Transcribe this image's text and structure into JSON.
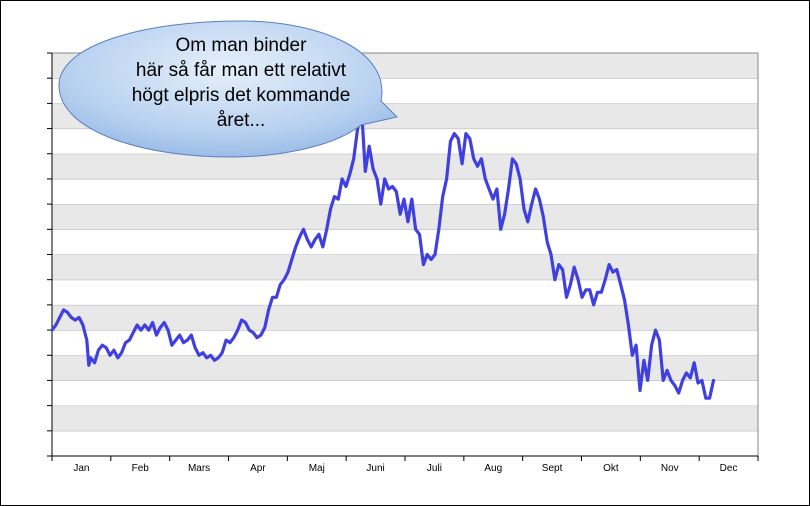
{
  "annotation": {
    "lines": [
      "Om man binder",
      "här så får man ett relativt",
      "högt elpris det kommande",
      "året..."
    ]
  },
  "chart_data": {
    "type": "line",
    "title": "",
    "xlabel": "",
    "ylabel": "",
    "x_tick_labels": [
      "Jan",
      "Feb",
      "Mars",
      "Apr",
      "Maj",
      "Juni",
      "Juli",
      "Aug",
      "Sept",
      "Okt",
      "Nov",
      "Dec"
    ],
    "y_tick_labels_shown": false,
    "grid": "alternating horizontal bands",
    "x_domain": [
      0,
      365
    ],
    "ylim": [
      0,
      16
    ],
    "series": [
      {
        "color": "#4040e0",
        "points": [
          [
            0,
            5.0
          ],
          [
            2,
            5.2
          ],
          [
            4,
            5.5
          ],
          [
            6,
            5.8
          ],
          [
            8,
            5.7
          ],
          [
            10,
            5.5
          ],
          [
            12,
            5.4
          ],
          [
            14,
            5.5
          ],
          [
            16,
            5.2
          ],
          [
            18,
            4.6
          ],
          [
            19,
            3.6
          ],
          [
            20,
            3.9
          ],
          [
            22,
            3.7
          ],
          [
            24,
            4.2
          ],
          [
            26,
            4.4
          ],
          [
            28,
            4.3
          ],
          [
            30,
            4.0
          ],
          [
            32,
            4.2
          ],
          [
            34,
            3.9
          ],
          [
            36,
            4.1
          ],
          [
            38,
            4.5
          ],
          [
            40,
            4.6
          ],
          [
            42,
            4.9
          ],
          [
            44,
            5.2
          ],
          [
            46,
            5.0
          ],
          [
            48,
            5.2
          ],
          [
            50,
            5.0
          ],
          [
            52,
            5.3
          ],
          [
            54,
            4.8
          ],
          [
            56,
            5.1
          ],
          [
            58,
            5.3
          ],
          [
            60,
            5.0
          ],
          [
            62,
            4.4
          ],
          [
            64,
            4.6
          ],
          [
            66,
            4.8
          ],
          [
            68,
            4.5
          ],
          [
            70,
            4.6
          ],
          [
            72,
            4.8
          ],
          [
            74,
            4.3
          ],
          [
            76,
            4.0
          ],
          [
            78,
            4.1
          ],
          [
            80,
            3.9
          ],
          [
            82,
            4.0
          ],
          [
            84,
            3.8
          ],
          [
            86,
            3.9
          ],
          [
            88,
            4.1
          ],
          [
            90,
            4.6
          ],
          [
            92,
            4.5
          ],
          [
            94,
            4.7
          ],
          [
            96,
            5.0
          ],
          [
            98,
            5.4
          ],
          [
            100,
            5.3
          ],
          [
            102,
            5.0
          ],
          [
            104,
            4.9
          ],
          [
            106,
            4.7
          ],
          [
            108,
            4.8
          ],
          [
            110,
            5.1
          ],
          [
            112,
            5.8
          ],
          [
            114,
            6.3
          ],
          [
            116,
            6.3
          ],
          [
            118,
            6.8
          ],
          [
            120,
            7.0
          ],
          [
            122,
            7.3
          ],
          [
            124,
            7.8
          ],
          [
            126,
            8.3
          ],
          [
            128,
            8.7
          ],
          [
            130,
            9.0
          ],
          [
            132,
            8.6
          ],
          [
            134,
            8.3
          ],
          [
            136,
            8.6
          ],
          [
            138,
            8.8
          ],
          [
            140,
            8.3
          ],
          [
            142,
            9.0
          ],
          [
            144,
            9.8
          ],
          [
            146,
            10.3
          ],
          [
            148,
            10.2
          ],
          [
            150,
            11.0
          ],
          [
            152,
            10.7
          ],
          [
            154,
            11.2
          ],
          [
            156,
            11.8
          ],
          [
            158,
            13.0
          ],
          [
            160,
            13.8
          ],
          [
            162,
            11.3
          ],
          [
            164,
            12.3
          ],
          [
            166,
            11.4
          ],
          [
            168,
            11.0
          ],
          [
            170,
            10.0
          ],
          [
            172,
            11.0
          ],
          [
            174,
            10.6
          ],
          [
            176,
            10.7
          ],
          [
            178,
            10.5
          ],
          [
            180,
            9.6
          ],
          [
            182,
            10.2
          ],
          [
            184,
            9.3
          ],
          [
            186,
            10.2
          ],
          [
            188,
            9.0
          ],
          [
            190,
            8.8
          ],
          [
            192,
            7.6
          ],
          [
            194,
            8.0
          ],
          [
            196,
            7.8
          ],
          [
            198,
            8.0
          ],
          [
            200,
            9.0
          ],
          [
            202,
            10.3
          ],
          [
            204,
            11.0
          ],
          [
            206,
            12.5
          ],
          [
            208,
            12.8
          ],
          [
            210,
            12.6
          ],
          [
            212,
            11.6
          ],
          [
            214,
            12.8
          ],
          [
            216,
            12.6
          ],
          [
            218,
            11.8
          ],
          [
            220,
            11.5
          ],
          [
            222,
            11.8
          ],
          [
            224,
            11.0
          ],
          [
            226,
            10.6
          ],
          [
            228,
            10.2
          ],
          [
            230,
            10.6
          ],
          [
            232,
            9.0
          ],
          [
            234,
            9.6
          ],
          [
            236,
            10.6
          ],
          [
            238,
            11.8
          ],
          [
            240,
            11.6
          ],
          [
            242,
            11.0
          ],
          [
            244,
            9.8
          ],
          [
            246,
            9.3
          ],
          [
            248,
            10.0
          ],
          [
            250,
            10.6
          ],
          [
            252,
            10.2
          ],
          [
            254,
            9.5
          ],
          [
            256,
            8.5
          ],
          [
            258,
            8.0
          ],
          [
            260,
            7.0
          ],
          [
            262,
            7.6
          ],
          [
            264,
            7.4
          ],
          [
            266,
            6.3
          ],
          [
            268,
            6.8
          ],
          [
            270,
            7.5
          ],
          [
            272,
            7.0
          ],
          [
            274,
            6.3
          ],
          [
            276,
            6.6
          ],
          [
            278,
            6.6
          ],
          [
            280,
            6.0
          ],
          [
            282,
            6.5
          ],
          [
            284,
            6.5
          ],
          [
            286,
            7.0
          ],
          [
            288,
            7.6
          ],
          [
            290,
            7.3
          ],
          [
            292,
            7.4
          ],
          [
            294,
            6.8
          ],
          [
            296,
            6.2
          ],
          [
            298,
            5.2
          ],
          [
            300,
            4.0
          ],
          [
            302,
            4.4
          ],
          [
            304,
            2.6
          ],
          [
            306,
            3.8
          ],
          [
            308,
            3.0
          ],
          [
            310,
            4.4
          ],
          [
            312,
            5.0
          ],
          [
            314,
            4.6
          ],
          [
            316,
            3.0
          ],
          [
            318,
            3.4
          ],
          [
            320,
            3.0
          ],
          [
            322,
            2.8
          ],
          [
            324,
            2.5
          ],
          [
            326,
            3.0
          ],
          [
            328,
            3.3
          ],
          [
            330,
            3.1
          ],
          [
            332,
            3.7
          ],
          [
            334,
            2.9
          ],
          [
            336,
            3.0
          ],
          [
            338,
            2.3
          ],
          [
            340,
            2.3
          ],
          [
            342,
            3.0
          ]
        ]
      }
    ]
  }
}
